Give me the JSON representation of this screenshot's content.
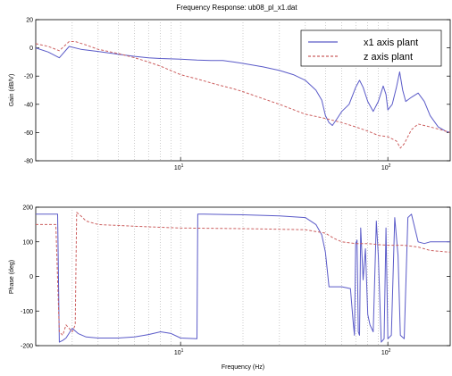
{
  "chart_data": [
    {
      "type": "line",
      "title": "Frequency Response:  ub08_pl_x1.dat",
      "xlabel": "",
      "ylabel": "Gain (dB/V)",
      "xscale": "log",
      "xlim": [
        2,
        200
      ],
      "ylim": [
        -80,
        20
      ],
      "yticks": [
        20,
        0,
        -20,
        -40,
        -60,
        -80
      ],
      "xtick_labels": [
        {
          "value": 10,
          "base": "10",
          "exp": "1"
        },
        {
          "value": 100,
          "base": "10",
          "exp": "2"
        }
      ],
      "grid": "x-only",
      "legend": {
        "placement": "top-right"
      },
      "series": [
        {
          "name": "x1 axis plant",
          "color": "#5a5ac8",
          "dash": "solid",
          "points": [
            [
              2.0,
              0
            ],
            [
              2.3,
              -3
            ],
            [
              2.6,
              -7
            ],
            [
              2.9,
              1
            ],
            [
              3.3,
              -1
            ],
            [
              4,
              -2.5
            ],
            [
              5,
              -4.5
            ],
            [
              6,
              -6
            ],
            [
              7,
              -7
            ],
            [
              8,
              -7.5
            ],
            [
              10,
              -8
            ],
            [
              12,
              -8.7
            ],
            [
              14,
              -8.9
            ],
            [
              16,
              -9
            ],
            [
              18,
              -10
            ],
            [
              20,
              -11
            ],
            [
              25,
              -13.5
            ],
            [
              30,
              -16
            ],
            [
              35,
              -19
            ],
            [
              40,
              -23
            ],
            [
              45,
              -30
            ],
            [
              48,
              -37
            ],
            [
              50,
              -48
            ],
            [
              52,
              -53
            ],
            [
              54,
              -55
            ],
            [
              57,
              -50
            ],
            [
              60,
              -45
            ],
            [
              65,
              -40
            ],
            [
              70,
              -28
            ],
            [
              73,
              -23
            ],
            [
              76,
              -28
            ],
            [
              80,
              -38
            ],
            [
              85,
              -45
            ],
            [
              90,
              -38
            ],
            [
              95,
              -27
            ],
            [
              98,
              -33
            ],
            [
              100,
              -44
            ],
            [
              105,
              -40
            ],
            [
              110,
              -28
            ],
            [
              114,
              -17
            ],
            [
              118,
              -30
            ],
            [
              122,
              -38
            ],
            [
              130,
              -35
            ],
            [
              140,
              -32
            ],
            [
              150,
              -38
            ],
            [
              160,
              -48
            ],
            [
              175,
              -56
            ],
            [
              190,
              -59
            ],
            [
              200,
              -60
            ]
          ]
        },
        {
          "name": "z axis plant",
          "color": "#cc5f5f",
          "dash": "dashed",
          "points": [
            [
              2,
              3
            ],
            [
              2.3,
              1
            ],
            [
              2.6,
              -2
            ],
            [
              2.9,
              4.5
            ],
            [
              3.1,
              4.5
            ],
            [
              3.5,
              2
            ],
            [
              4,
              -1
            ],
            [
              5,
              -4
            ],
            [
              6,
              -7
            ],
            [
              7,
              -10
            ],
            [
              8,
              -13
            ],
            [
              10,
              -19
            ],
            [
              12,
              -22
            ],
            [
              15,
              -26
            ],
            [
              18,
              -29
            ],
            [
              20,
              -31
            ],
            [
              25,
              -36
            ],
            [
              30,
              -40
            ],
            [
              40,
              -47
            ],
            [
              50,
              -50
            ],
            [
              60,
              -53
            ],
            [
              70,
              -56
            ],
            [
              80,
              -59
            ],
            [
              90,
              -62
            ],
            [
              100,
              -63
            ],
            [
              110,
              -66
            ],
            [
              115,
              -71
            ],
            [
              120,
              -68
            ],
            [
              130,
              -58
            ],
            [
              140,
              -54
            ],
            [
              160,
              -56
            ],
            [
              180,
              -58
            ],
            [
              200,
              -60
            ]
          ]
        }
      ]
    },
    {
      "type": "line",
      "title": "",
      "xlabel": "Frequency (Hz)",
      "ylabel": "Phase (deg)",
      "xscale": "log",
      "xlim": [
        2,
        200
      ],
      "ylim": [
        -200,
        200
      ],
      "yticks": [
        200,
        100,
        0,
        -100,
        -200
      ],
      "xtick_labels": [
        {
          "value": 10,
          "base": "10",
          "exp": "1"
        },
        {
          "value": 100,
          "base": "10",
          "exp": "2"
        }
      ],
      "grid": "x-only",
      "series": [
        {
          "name": "x1 axis plant",
          "color": "#5a5ac8",
          "dash": "solid",
          "points": [
            [
              2,
              180
            ],
            [
              2.55,
              180
            ],
            [
              2.6,
              -190
            ],
            [
              2.7,
              -185
            ],
            [
              2.8,
              -178
            ],
            [
              3,
              -150
            ],
            [
              3.2,
              -165
            ],
            [
              3.5,
              -175
            ],
            [
              4,
              -178
            ],
            [
              5,
              -178
            ],
            [
              6,
              -175
            ],
            [
              7,
              -168
            ],
            [
              8,
              -160
            ],
            [
              9,
              -165
            ],
            [
              10,
              -178
            ],
            [
              12,
              -180
            ],
            [
              12.1,
              180
            ],
            [
              13,
              180
            ],
            [
              20,
              178
            ],
            [
              30,
              175
            ],
            [
              40,
              170
            ],
            [
              45,
              150
            ],
            [
              48,
              120
            ],
            [
              50,
              70
            ],
            [
              52,
              -30
            ],
            [
              60,
              -30
            ],
            [
              66,
              -35
            ],
            [
              68,
              -130
            ],
            [
              69,
              -170
            ],
            [
              70,
              95
            ],
            [
              71,
              105
            ],
            [
              72,
              -160
            ],
            [
              73,
              -170
            ],
            [
              74,
              140
            ],
            [
              76,
              -10
            ],
            [
              78,
              80
            ],
            [
              80,
              -110
            ],
            [
              82,
              -140
            ],
            [
              85,
              -160
            ],
            [
              88,
              160
            ],
            [
              90,
              60
            ],
            [
              93,
              -190
            ],
            [
              96,
              -180
            ],
            [
              98,
              140
            ],
            [
              100,
              -180
            ],
            [
              104,
              -170
            ],
            [
              108,
              170
            ],
            [
              112,
              60
            ],
            [
              115,
              -170
            ],
            [
              120,
              -180
            ],
            [
              125,
              170
            ],
            [
              130,
              180
            ],
            [
              140,
              100
            ],
            [
              150,
              95
            ],
            [
              160,
              100
            ],
            [
              200,
              100
            ]
          ]
        },
        {
          "name": "z axis plant",
          "color": "#cc5f5f",
          "dash": "dashed",
          "points": [
            [
              2,
              150
            ],
            [
              2.5,
              150
            ],
            [
              2.6,
              -160
            ],
            [
              2.7,
              -170
            ],
            [
              2.8,
              -140
            ],
            [
              3,
              -160
            ],
            [
              3.1,
              -140
            ],
            [
              3.15,
              185
            ],
            [
              3.3,
              175
            ],
            [
              3.5,
              160
            ],
            [
              4,
              150
            ],
            [
              6,
              145
            ],
            [
              8,
              142
            ],
            [
              10,
              140
            ],
            [
              20,
              138
            ],
            [
              40,
              135
            ],
            [
              50,
              125
            ],
            [
              55,
              110
            ],
            [
              60,
              100
            ],
            [
              70,
              95
            ],
            [
              80,
              95
            ],
            [
              90,
              92
            ],
            [
              100,
              90
            ],
            [
              120,
              90
            ],
            [
              140,
              85
            ],
            [
              160,
              75
            ],
            [
              200,
              70
            ]
          ]
        }
      ]
    }
  ]
}
